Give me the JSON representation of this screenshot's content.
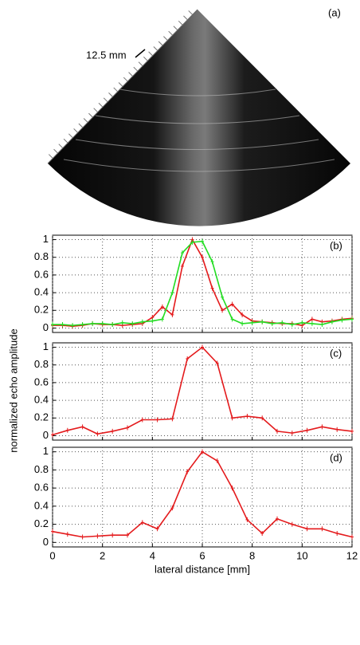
{
  "image": {
    "label": "(a)",
    "scale_label": "12.5 mm"
  },
  "ylabel": "normalized echo amplitude",
  "chart_data": [
    {
      "type": "line",
      "label": "(b)",
      "x": [
        0,
        0.4,
        0.8,
        1.2,
        1.6,
        2.0,
        2.4,
        2.8,
        3.2,
        3.6,
        4.0,
        4.4,
        4.8,
        5.2,
        5.6,
        6.0,
        6.4,
        6.8,
        7.2,
        7.6,
        8.0,
        8.4,
        8.8,
        9.2,
        9.6,
        10.0,
        10.4,
        10.8,
        11.2,
        11.6,
        12.0
      ],
      "series": [
        {
          "color": "#e41a1c",
          "values": [
            0.03,
            0.03,
            0.02,
            0.03,
            0.05,
            0.04,
            0.04,
            0.03,
            0.04,
            0.05,
            0.12,
            0.24,
            0.15,
            0.7,
            1.0,
            0.8,
            0.45,
            0.2,
            0.27,
            0.15,
            0.08,
            0.07,
            0.06,
            0.05,
            0.05,
            0.03,
            0.1,
            0.07,
            0.08,
            0.1,
            0.11
          ]
        },
        {
          "color": "#22dd22",
          "values": [
            0.04,
            0.04,
            0.03,
            0.04,
            0.05,
            0.05,
            0.04,
            0.06,
            0.05,
            0.07,
            0.08,
            0.1,
            0.4,
            0.85,
            0.97,
            0.98,
            0.75,
            0.35,
            0.1,
            0.05,
            0.06,
            0.07,
            0.05,
            0.06,
            0.04,
            0.06,
            0.05,
            0.04,
            0.07,
            0.09,
            0.1
          ]
        }
      ],
      "xlim": [
        0,
        12
      ],
      "xticks": [
        0,
        2,
        4,
        6,
        8,
        10,
        12
      ],
      "show_xtick_labels": false,
      "ylim": [
        -0.05,
        1.05
      ],
      "yticks": [
        0,
        0.2,
        0.4,
        0.6,
        0.8,
        1
      ],
      "grid": true
    },
    {
      "type": "line",
      "label": "(c)",
      "x": [
        0,
        0.6,
        1.2,
        1.8,
        2.4,
        3.0,
        3.6,
        4.2,
        4.8,
        5.4,
        6.0,
        6.6,
        7.2,
        7.8,
        8.4,
        9.0,
        9.6,
        10.2,
        10.8,
        11.4,
        12.0
      ],
      "series": [
        {
          "color": "#e41a1c",
          "values": [
            0.01,
            0.06,
            0.1,
            0.02,
            0.05,
            0.09,
            0.18,
            0.18,
            0.19,
            0.87,
            1.0,
            0.82,
            0.2,
            0.22,
            0.2,
            0.05,
            0.03,
            0.06,
            0.1,
            0.07,
            0.05
          ]
        }
      ],
      "xlim": [
        0,
        12
      ],
      "xticks": [
        0,
        2,
        4,
        6,
        8,
        10,
        12
      ],
      "show_xtick_labels": false,
      "ylim": [
        -0.05,
        1.05
      ],
      "yticks": [
        0,
        0.2,
        0.4,
        0.6,
        0.8,
        1
      ],
      "grid": true
    },
    {
      "type": "line",
      "label": "(d)",
      "xlabel": "lateral distance [mm]",
      "x": [
        0,
        0.6,
        1.2,
        1.8,
        2.4,
        3.0,
        3.6,
        4.2,
        4.8,
        5.4,
        6.0,
        6.6,
        7.2,
        7.8,
        8.4,
        9.0,
        9.6,
        10.2,
        10.8,
        11.4,
        12.0
      ],
      "series": [
        {
          "color": "#e41a1c",
          "values": [
            0.12,
            0.09,
            0.06,
            0.07,
            0.08,
            0.08,
            0.22,
            0.15,
            0.38,
            0.78,
            1.0,
            0.9,
            0.6,
            0.25,
            0.1,
            0.26,
            0.2,
            0.15,
            0.15,
            0.1,
            0.06
          ]
        }
      ],
      "xlim": [
        0,
        12
      ],
      "xticks": [
        0,
        2,
        4,
        6,
        8,
        10,
        12
      ],
      "show_xtick_labels": true,
      "ylim": [
        -0.05,
        1.05
      ],
      "yticks": [
        0,
        0.2,
        0.4,
        0.6,
        0.8,
        1
      ],
      "grid": true
    }
  ]
}
